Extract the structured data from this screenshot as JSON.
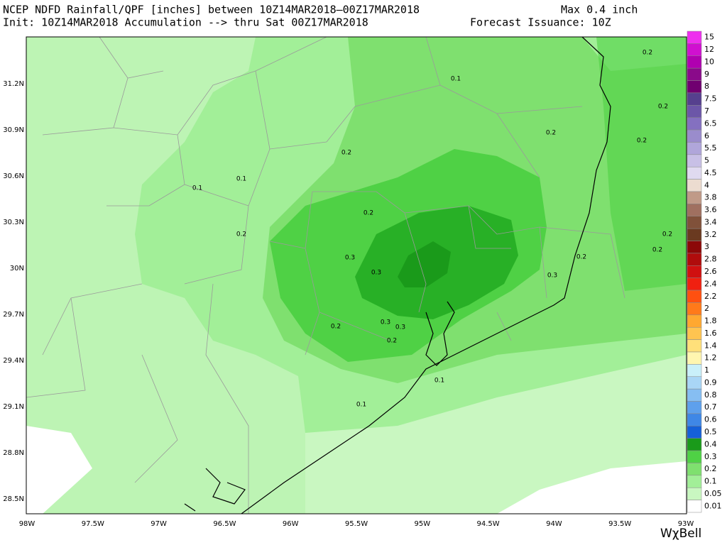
{
  "header": {
    "line1": "NCEP NDFD Rainfall/QPF [inches] between 10Z14MAR2018—00Z17MAR2018",
    "max": "Max 0.4 inch",
    "line2": "Init: 10Z14MAR2018 Accumulation --> thru Sat 00Z17MAR2018",
    "issuance": "Forecast Issuance: 10Z"
  },
  "longitudes": [
    "98W",
    "97.5W",
    "97W",
    "96.5W",
    "96W",
    "95.5W",
    "95W",
    "94.5W",
    "94W",
    "93.5W",
    "93W"
  ],
  "latitudes": [
    "31.2N",
    "30.9N",
    "30.6N",
    "30.3N",
    "30N",
    "29.7N",
    "29.4N",
    "29.1N",
    "28.8N",
    "28.5N"
  ],
  "colorbar": {
    "levels": [
      15,
      12,
      10,
      9,
      8,
      7.5,
      7,
      6.5,
      6,
      5.5,
      5,
      4.5,
      4,
      3.8,
      3.6,
      3.4,
      3.2,
      3,
      2.8,
      2.6,
      2.4,
      2.2,
      2,
      1.8,
      1.6,
      1.4,
      1.2,
      1,
      0.9,
      0.8,
      0.7,
      0.6,
      0.5,
      0.4,
      0.3,
      0.2,
      0.1,
      0.05,
      0.01
    ],
    "colors": [
      "#ee30ee",
      "#d010d0",
      "#b000b0",
      "#8a0a8a",
      "#700070",
      "#56408e",
      "#6c56a8",
      "#8470c0",
      "#9a8ccc",
      "#b0a6da",
      "#c8c0e6",
      "#e0daf0",
      "#ecdcd0",
      "#c09a88",
      "#a07060",
      "#80513a",
      "#6a3a20",
      "#8c0808",
      "#b00c0c",
      "#d01010",
      "#f02010",
      "#ff5010",
      "#ff7a1a",
      "#ffa830",
      "#ffc450",
      "#ffe07a",
      "#fff6b0",
      "#c9f0fa",
      "#a9d6f6",
      "#86bef2",
      "#5ea0ec",
      "#3f87e6",
      "#1560d8",
      "#1a9a1a",
      "#4fd145",
      "#7fe06f",
      "#a2ef98",
      "#c9f7c1",
      "#ffffff"
    ]
  },
  "contour_labels": [
    0.2,
    0.1,
    0.2,
    0.2,
    0.2,
    0.2,
    0.1,
    0.1,
    0.2,
    0.2,
    0.2,
    0.2,
    0.2,
    0.3,
    0.3,
    0.3,
    0.3,
    0.2,
    0.3,
    0.2,
    0.1,
    0.1
  ],
  "logo": "WχBell"
}
